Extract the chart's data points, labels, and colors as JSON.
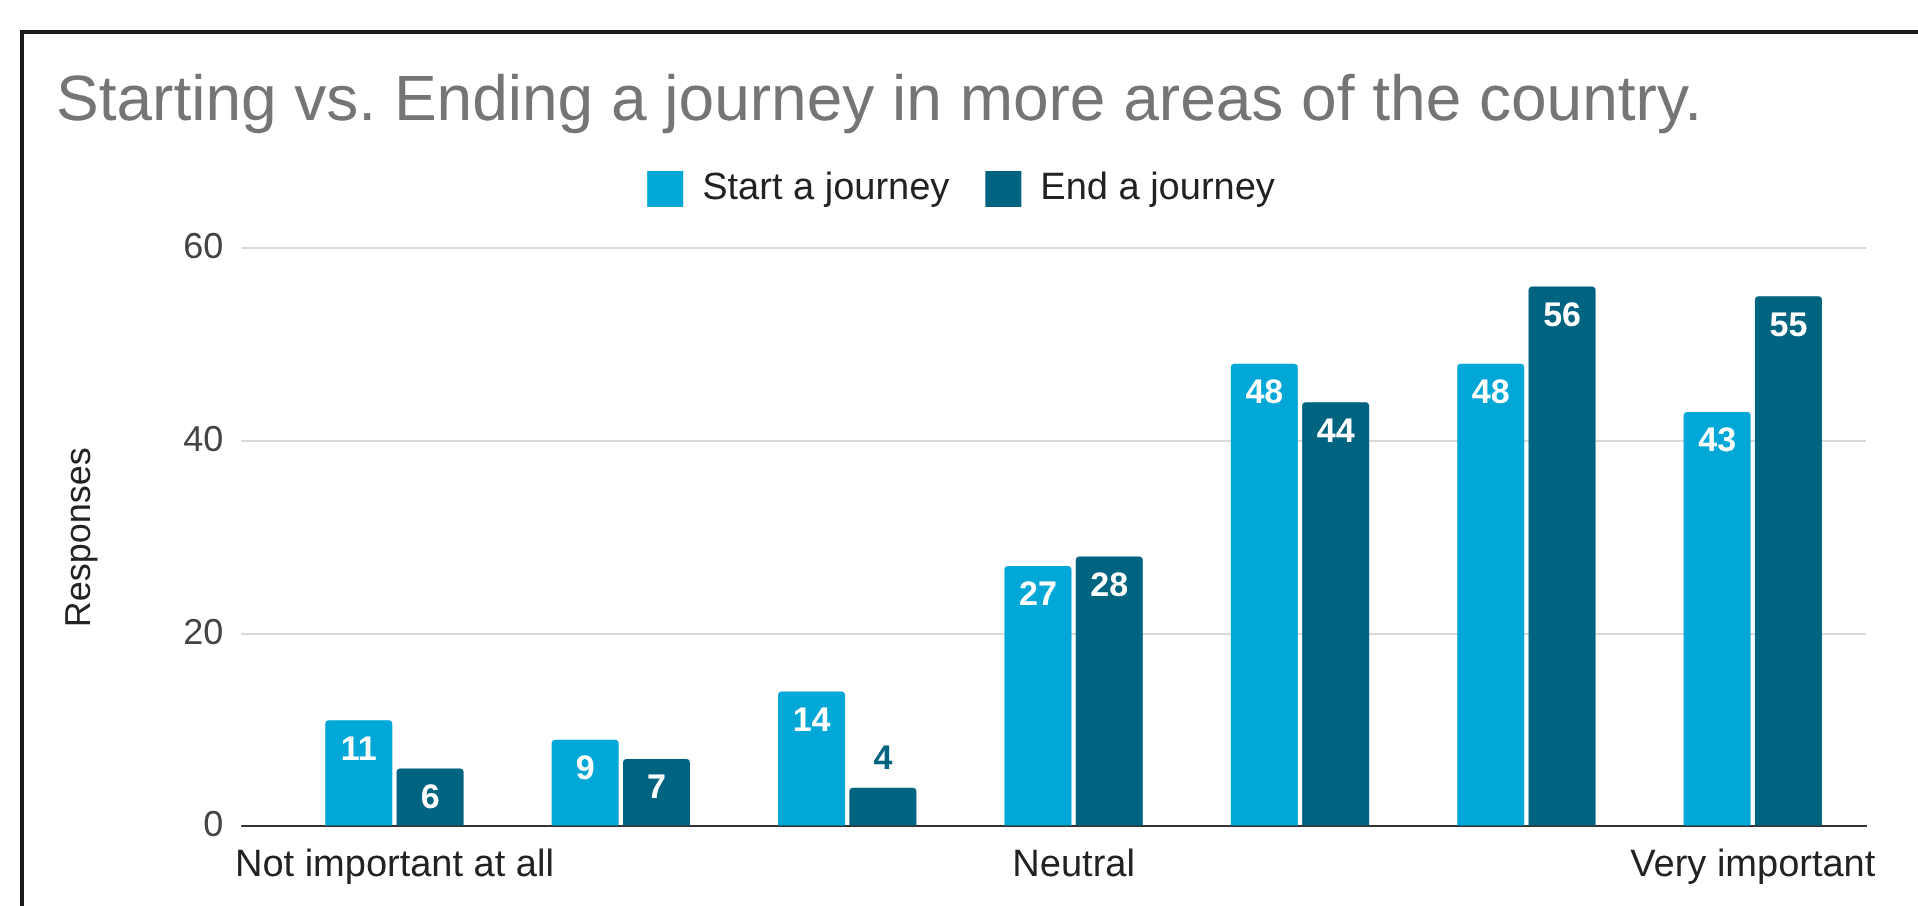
{
  "chart_data": {
    "type": "bar",
    "title": "Starting vs. Ending a journey in more areas of the country.",
    "ylabel": "Responses",
    "categories": [
      "Not important at all",
      null,
      null,
      "Neutral",
      null,
      null,
      "Very important"
    ],
    "series": [
      {
        "name": "Start a journey",
        "color": "#00a7d7",
        "values": [
          11,
          9,
          14,
          27,
          48,
          48,
          43
        ]
      },
      {
        "name": "End a journey",
        "color": "#006380",
        "values": [
          6,
          7,
          4,
          28,
          44,
          56,
          55
        ]
      }
    ],
    "ylim": [
      0,
      60
    ],
    "yticks": [
      0,
      20,
      40,
      60
    ],
    "grid": "y",
    "legend": "top",
    "data_labels": true
  }
}
